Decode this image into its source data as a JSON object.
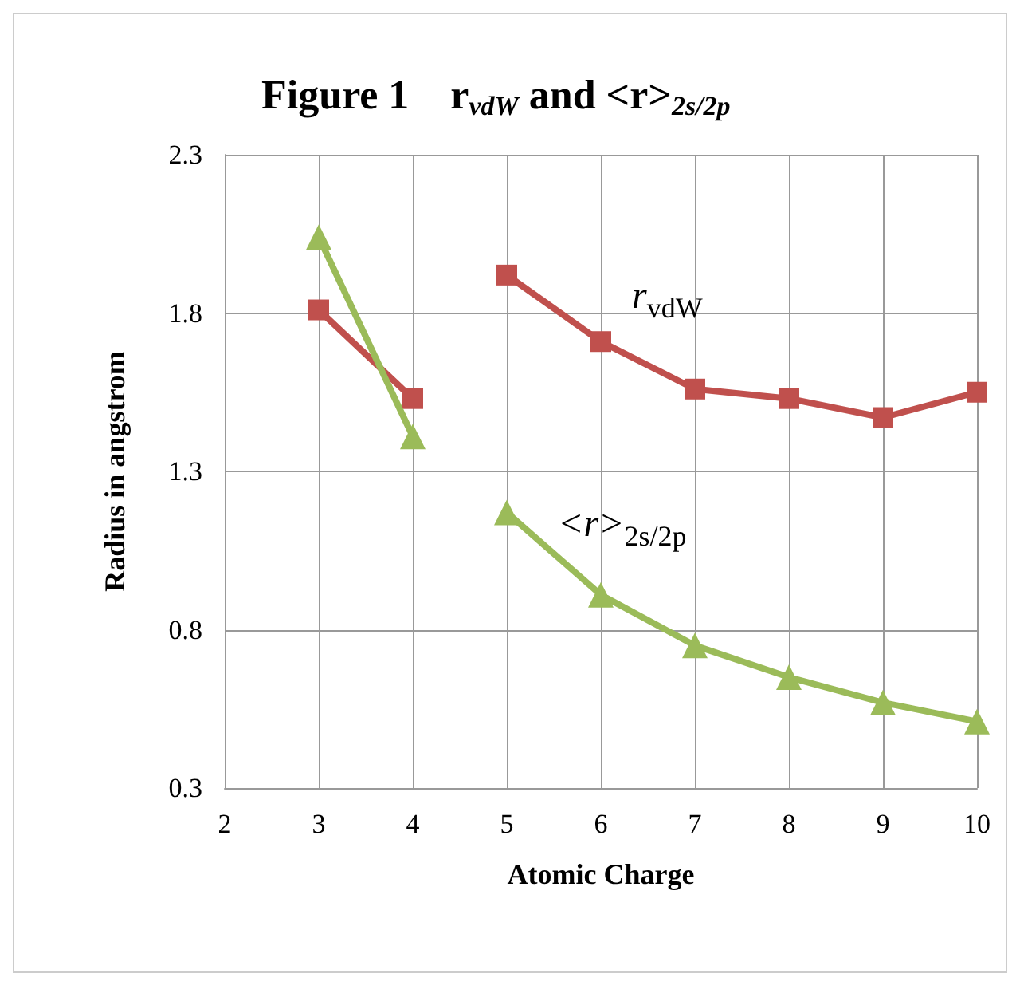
{
  "chart_data": {
    "type": "line",
    "title": "Figure 1    r$_{vdW}$ and <r>$_{2s/2p}$",
    "xlabel": "Atomic Charge",
    "ylabel": "Radius in angstrom",
    "xlim": [
      2,
      10
    ],
    "xticks": [
      2,
      3,
      4,
      5,
      6,
      7,
      8,
      9,
      10
    ],
    "ylim": [
      0.3,
      2.3
    ],
    "yticks": [
      0.3,
      0.8,
      1.3,
      1.8,
      2.3
    ],
    "grid": true,
    "legend": false,
    "line_style": "solid",
    "series": [
      {
        "name": "r$_{vdW}$",
        "color": "#c0504d",
        "marker": "square",
        "x": [
          3,
          4,
          null,
          5,
          6,
          7,
          8,
          9,
          10
        ],
        "values": [
          1.81,
          1.53,
          null,
          1.92,
          1.71,
          1.56,
          1.53,
          1.47,
          1.55
        ]
      },
      {
        "name": "<r>$_{2s/2p}$",
        "color": "#9bbb59",
        "marker": "triangle",
        "x": [
          3,
          4,
          null,
          5,
          6,
          7,
          8,
          9,
          10
        ],
        "values": [
          2.04,
          1.41,
          null,
          1.17,
          0.91,
          0.75,
          0.65,
          0.57,
          0.51
        ]
      }
    ]
  }
}
